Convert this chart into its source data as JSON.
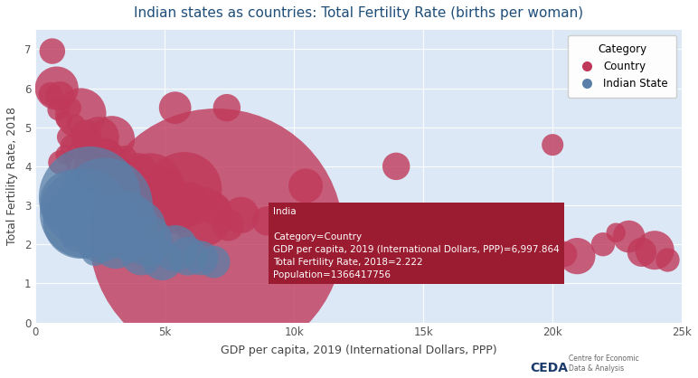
{
  "title": "Indian states as countries: Total Fertility Rate (births per woman)",
  "xlabel": "GDP per capita, 2019 (International Dollars, PPP)",
  "ylabel": "Total Fertility Rate, 2018",
  "bg_color": "#dce8f5",
  "fig_bg_color": "#ffffff",
  "title_color": "#1f4e79",
  "axis_label_color": "#444444",
  "xlim": [
    0,
    25000
  ],
  "ylim": [
    0,
    7.5
  ],
  "xticks": [
    0,
    5000,
    10000,
    15000,
    20000,
    25000
  ],
  "xtick_labels": [
    "0",
    "5k",
    "10k",
    "15k",
    "20k",
    "25k"
  ],
  "yticks": [
    0,
    1,
    2,
    3,
    4,
    5,
    6,
    7
  ],
  "tooltip_bg_color": "#9b1b30",
  "tooltip_x_data": 6997.864,
  "tooltip_y_data": 2.222,
  "tooltip_text_title": "India",
  "tooltip_text_body": "Category=Country\nGDP per capita, 2019 (International Dollars, PPP)=6,997.864\nTotal Fertility Rate, 2018=2.222\nPopulation=1366417756",
  "country_color": "#c0395a",
  "state_color": "#5a7fa8",
  "country_alpha": 0.8,
  "state_alpha": 0.75,
  "size_scale": 3e-05,
  "countries": [
    {
      "gdp": 650,
      "tfr": 6.95,
      "pop": 14000000
    },
    {
      "gdp": 820,
      "tfr": 6.0,
      "pop": 40000000
    },
    {
      "gdp": 580,
      "tfr": 5.85,
      "pop": 12000000
    },
    {
      "gdp": 950,
      "tfr": 5.8,
      "pop": 18000000
    },
    {
      "gdp": 1400,
      "tfr": 5.5,
      "pop": 8000000
    },
    {
      "gdp": 880,
      "tfr": 5.45,
      "pop": 10000000
    },
    {
      "gdp": 1750,
      "tfr": 5.35,
      "pop": 55000000
    },
    {
      "gdp": 1100,
      "tfr": 5.2,
      "pop": 6000000
    },
    {
      "gdp": 1550,
      "tfr": 5.1,
      "pop": 7000000
    },
    {
      "gdp": 5400,
      "tfr": 5.5,
      "pop": 22000000
    },
    {
      "gdp": 7400,
      "tfr": 5.5,
      "pop": 16000000
    },
    {
      "gdp": 1950,
      "tfr": 4.8,
      "pop": 20000000
    },
    {
      "gdp": 1250,
      "tfr": 4.75,
      "pop": 10000000
    },
    {
      "gdp": 2450,
      "tfr": 4.75,
      "pop": 35000000
    },
    {
      "gdp": 2950,
      "tfr": 4.7,
      "pop": 45000000
    },
    {
      "gdp": 1750,
      "tfr": 4.65,
      "pop": 7000000
    },
    {
      "gdp": 1450,
      "tfr": 4.5,
      "pop": 14000000
    },
    {
      "gdp": 2150,
      "tfr": 4.5,
      "pop": 18000000
    },
    {
      "gdp": 1150,
      "tfr": 4.3,
      "pop": 8000000
    },
    {
      "gdp": 2750,
      "tfr": 4.3,
      "pop": 22000000
    },
    {
      "gdp": 1850,
      "tfr": 4.2,
      "pop": 30000000
    },
    {
      "gdp": 3450,
      "tfr": 4.2,
      "pop": 14000000
    },
    {
      "gdp": 950,
      "tfr": 4.1,
      "pop": 12000000
    },
    {
      "gdp": 2550,
      "tfr": 4.0,
      "pop": 65000000
    },
    {
      "gdp": 3150,
      "tfr": 3.9,
      "pop": 25000000
    },
    {
      "gdp": 3950,
      "tfr": 3.8,
      "pop": 38000000
    },
    {
      "gdp": 2350,
      "tfr": 3.7,
      "pop": 14000000
    },
    {
      "gdp": 3750,
      "tfr": 3.6,
      "pop": 22000000
    },
    {
      "gdp": 2850,
      "tfr": 3.6,
      "pop": 28000000
    },
    {
      "gdp": 4450,
      "tfr": 3.5,
      "pop": 90000000
    },
    {
      "gdp": 4950,
      "tfr": 3.4,
      "pop": 42000000
    },
    {
      "gdp": 3550,
      "tfr": 3.3,
      "pop": 16000000
    },
    {
      "gdp": 5750,
      "tfr": 3.4,
      "pop": 120000000
    },
    {
      "gdp": 4150,
      "tfr": 3.2,
      "pop": 30000000
    },
    {
      "gdp": 5950,
      "tfr": 3.1,
      "pop": 32000000
    },
    {
      "gdp": 4750,
      "tfr": 3.0,
      "pop": 55000000
    },
    {
      "gdp": 6950,
      "tfr": 2.9,
      "pop": 22000000
    },
    {
      "gdp": 5450,
      "tfr": 2.8,
      "pop": 35000000
    },
    {
      "gdp": 7950,
      "tfr": 2.75,
      "pop": 28000000
    },
    {
      "gdp": 6450,
      "tfr": 2.7,
      "pop": 75000000
    },
    {
      "gdp": 8950,
      "tfr": 2.6,
      "pop": 18000000
    },
    {
      "gdp": 7450,
      "tfr": 2.5,
      "pop": 22000000
    },
    {
      "gdp": 10450,
      "tfr": 3.5,
      "pop": 25000000
    },
    {
      "gdp": 6997.864,
      "tfr": 2.222,
      "pop": 1366417756
    },
    {
      "gdp": 9950,
      "tfr": 2.4,
      "pop": 38000000
    },
    {
      "gdp": 10950,
      "tfr": 2.3,
      "pop": 30000000
    },
    {
      "gdp": 11950,
      "tfr": 2.2,
      "pop": 48000000
    },
    {
      "gdp": 13950,
      "tfr": 4.0,
      "pop": 16000000
    },
    {
      "gdp": 14950,
      "tfr": 2.1,
      "pop": 35000000
    },
    {
      "gdp": 15950,
      "tfr": 2.0,
      "pop": 55000000
    },
    {
      "gdp": 16950,
      "tfr": 1.9,
      "pop": 26000000
    },
    {
      "gdp": 17950,
      "tfr": 1.85,
      "pop": 20000000
    },
    {
      "gdp": 18950,
      "tfr": 1.8,
      "pop": 38000000
    },
    {
      "gdp": 20000,
      "tfr": 4.55,
      "pop": 10000000
    },
    {
      "gdp": 20450,
      "tfr": 1.75,
      "pop": 14000000
    },
    {
      "gdp": 20950,
      "tfr": 1.7,
      "pop": 28000000
    },
    {
      "gdp": 21950,
      "tfr": 2.0,
      "pop": 12000000
    },
    {
      "gdp": 22450,
      "tfr": 2.3,
      "pop": 8000000
    },
    {
      "gdp": 22950,
      "tfr": 2.2,
      "pop": 22000000
    },
    {
      "gdp": 23450,
      "tfr": 1.8,
      "pop": 18000000
    },
    {
      "gdp": 23950,
      "tfr": 1.85,
      "pop": 32000000
    },
    {
      "gdp": 24450,
      "tfr": 1.6,
      "pop": 12000000
    }
  ],
  "states": [
    {
      "gdp": 2100,
      "tfr": 3.2,
      "pop": 220000000
    },
    {
      "gdp": 2700,
      "tfr": 3.0,
      "pop": 190000000
    },
    {
      "gdp": 1750,
      "tfr": 2.6,
      "pop": 120000000
    },
    {
      "gdp": 3400,
      "tfr": 2.5,
      "pop": 100000000
    },
    {
      "gdp": 3900,
      "tfr": 2.4,
      "pop": 75000000
    },
    {
      "gdp": 2500,
      "tfr": 2.25,
      "pop": 65000000
    },
    {
      "gdp": 4300,
      "tfr": 2.1,
      "pop": 55000000
    },
    {
      "gdp": 3100,
      "tfr": 2.0,
      "pop": 50000000
    },
    {
      "gdp": 5400,
      "tfr": 1.9,
      "pop": 45000000
    },
    {
      "gdp": 4100,
      "tfr": 1.75,
      "pop": 38000000
    },
    {
      "gdp": 5900,
      "tfr": 1.7,
      "pop": 32000000
    },
    {
      "gdp": 4900,
      "tfr": 1.6,
      "pop": 35000000
    },
    {
      "gdp": 6400,
      "tfr": 1.65,
      "pop": 25000000
    },
    {
      "gdp": 6900,
      "tfr": 1.55,
      "pop": 22000000
    },
    {
      "gdp": 1550,
      "tfr": 2.2,
      "pop": 20000000
    },
    {
      "gdp": 2900,
      "tfr": 2.3,
      "pop": 18000000
    },
    {
      "gdp": 2300,
      "tfr": 1.8,
      "pop": 16000000
    },
    {
      "gdp": 3700,
      "tfr": 1.9,
      "pop": 15000000
    },
    {
      "gdp": 1900,
      "tfr": 2.8,
      "pop": 170000000
    },
    {
      "gdp": 1400,
      "tfr": 3.1,
      "pop": 85000000
    }
  ]
}
